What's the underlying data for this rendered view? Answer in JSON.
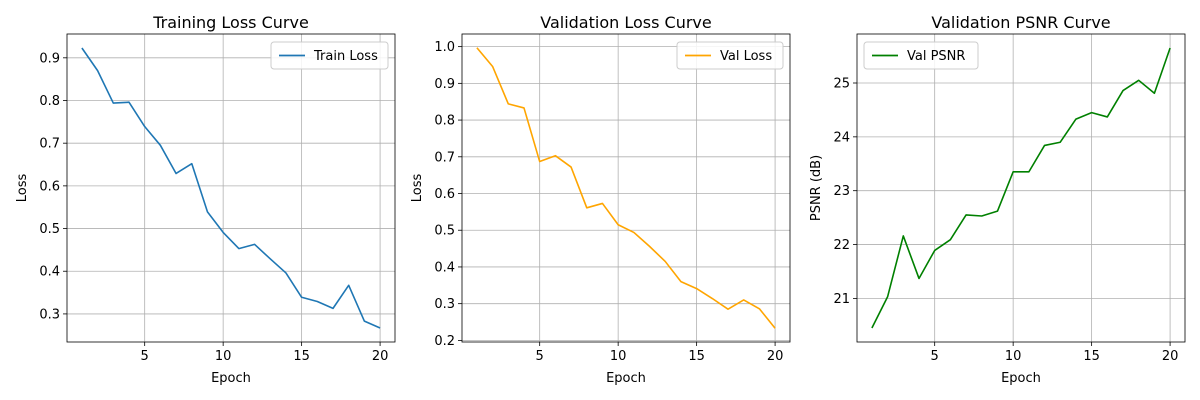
{
  "chart_data": [
    {
      "type": "line",
      "title": "Training Loss Curve",
      "xlabel": "Epoch",
      "ylabel": "Loss",
      "x": [
        1,
        2,
        3,
        4,
        5,
        6,
        7,
        8,
        9,
        10,
        11,
        12,
        13,
        14,
        15,
        16,
        17,
        18,
        19,
        20
      ],
      "series": [
        {
          "name": "Train Loss",
          "color": "#1f77b4",
          "values": [
            0.923,
            0.87,
            0.794,
            0.796,
            0.739,
            0.695,
            0.629,
            0.652,
            0.539,
            0.491,
            0.453,
            0.463,
            0.429,
            0.396,
            0.339,
            0.329,
            0.313,
            0.367,
            0.283,
            0.267
          ]
        }
      ],
      "xlim": [
        0.05,
        20.95
      ],
      "ylim": [
        0.2342,
        0.9558
      ],
      "xticks": [
        5,
        10,
        15,
        20
      ],
      "yticks": [
        0.3,
        0.4,
        0.5,
        0.6,
        0.7,
        0.8,
        0.9
      ],
      "ytick_labels": [
        "0.3",
        "0.4",
        "0.5",
        "0.6",
        "0.7",
        "0.8",
        "0.9"
      ],
      "grid": true,
      "legend": "top-right"
    },
    {
      "type": "line",
      "title": "Validation Loss Curve",
      "xlabel": "Epoch",
      "ylabel": "Loss",
      "x": [
        1,
        2,
        3,
        4,
        5,
        6,
        7,
        8,
        9,
        10,
        11,
        12,
        13,
        14,
        15,
        16,
        17,
        18,
        19,
        20
      ],
      "series": [
        {
          "name": "Val Loss",
          "color": "#ffa500",
          "values": [
            0.997,
            0.946,
            0.844,
            0.833,
            0.687,
            0.703,
            0.672,
            0.561,
            0.573,
            0.515,
            0.494,
            0.456,
            0.415,
            0.36,
            0.341,
            0.314,
            0.285,
            0.31,
            0.286,
            0.233
          ]
        }
      ],
      "xlim": [
        0.05,
        20.95
      ],
      "ylim": [
        0.1956,
        1.0344
      ],
      "xticks": [
        5,
        10,
        15,
        20
      ],
      "yticks": [
        0.2,
        0.3,
        0.4,
        0.5,
        0.6,
        0.7,
        0.8,
        0.9,
        1.0
      ],
      "ytick_labels": [
        "0.2",
        "0.3",
        "0.4",
        "0.5",
        "0.6",
        "0.7",
        "0.8",
        "0.9",
        "1.0"
      ],
      "grid": true,
      "legend": "top-right"
    },
    {
      "type": "line",
      "title": "Validation PSNR Curve",
      "xlabel": "Epoch",
      "ylabel": "PSNR (dB)",
      "x": [
        1,
        2,
        3,
        4,
        5,
        6,
        7,
        8,
        9,
        10,
        11,
        12,
        13,
        14,
        15,
        16,
        17,
        18,
        19,
        20
      ],
      "series": [
        {
          "name": "Val PSNR",
          "color": "#008000",
          "values": [
            20.45,
            21.03,
            22.16,
            21.37,
            21.89,
            22.09,
            22.55,
            22.53,
            22.62,
            23.35,
            23.35,
            23.84,
            23.9,
            24.33,
            24.45,
            24.37,
            24.86,
            25.05,
            24.81,
            25.65
          ]
        }
      ],
      "xlim": [
        0.05,
        20.95
      ],
      "ylim": [
        20.19,
        25.91
      ],
      "xticks": [
        5,
        10,
        15,
        20
      ],
      "yticks": [
        21,
        22,
        23,
        24,
        25
      ],
      "ytick_labels": [
        "21",
        "22",
        "23",
        "24",
        "25"
      ],
      "grid": true,
      "legend": "top-left"
    }
  ]
}
